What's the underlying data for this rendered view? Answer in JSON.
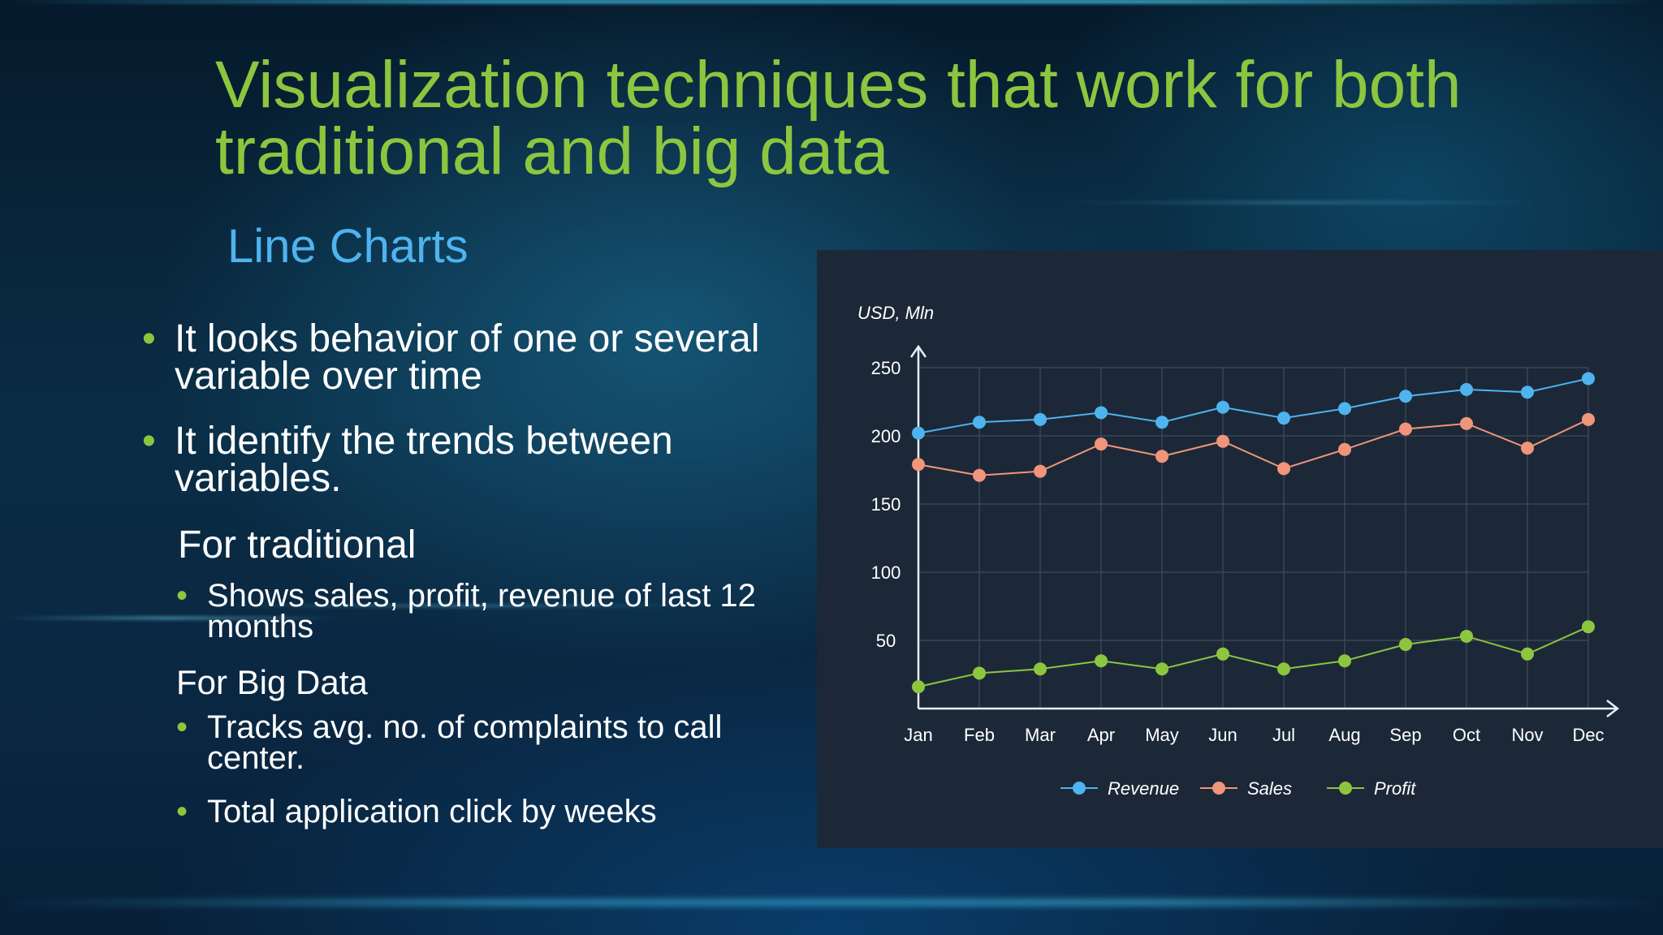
{
  "slide": {
    "title": "Visualization techniques that work for both traditional and big data",
    "subtitle": "Line Charts",
    "bullets": [
      "It looks behavior of one or several variable over time",
      "It identify the trends between variables."
    ],
    "traditional": {
      "heading": "For traditional",
      "items": [
        "Shows sales, profit, revenue of last 12 months"
      ]
    },
    "bigdata": {
      "heading": "For Big Data",
      "items": [
        "Tracks avg. no. of complaints to call center.",
        "Total application click by weeks"
      ]
    },
    "bullet_glyph": "•"
  },
  "chart_data": {
    "type": "line",
    "ylabel": "USD, Mln",
    "categories": [
      "Jan",
      "Feb",
      "Mar",
      "Apr",
      "May",
      "Jun",
      "Jul",
      "Aug",
      "Sep",
      "Oct",
      "Nov",
      "Dec"
    ],
    "ylim": [
      0,
      250
    ],
    "yticks": [
      50,
      100,
      150,
      200,
      250
    ],
    "grid": true,
    "legend": "bottom",
    "series": [
      {
        "name": "Revenue",
        "color": "#4fb3f0",
        "values": [
          202,
          210,
          212,
          217,
          210,
          221,
          213,
          220,
          229,
          234,
          232,
          242
        ]
      },
      {
        "name": "Sales",
        "color": "#f0957a",
        "values": [
          179,
          171,
          174,
          194,
          185,
          196,
          176,
          190,
          205,
          209,
          191,
          212
        ]
      },
      {
        "name": "Profit",
        "color": "#8cc63f",
        "values": [
          16,
          26,
          29,
          35,
          29,
          40,
          29,
          35,
          47,
          53,
          40,
          60
        ]
      }
    ]
  }
}
